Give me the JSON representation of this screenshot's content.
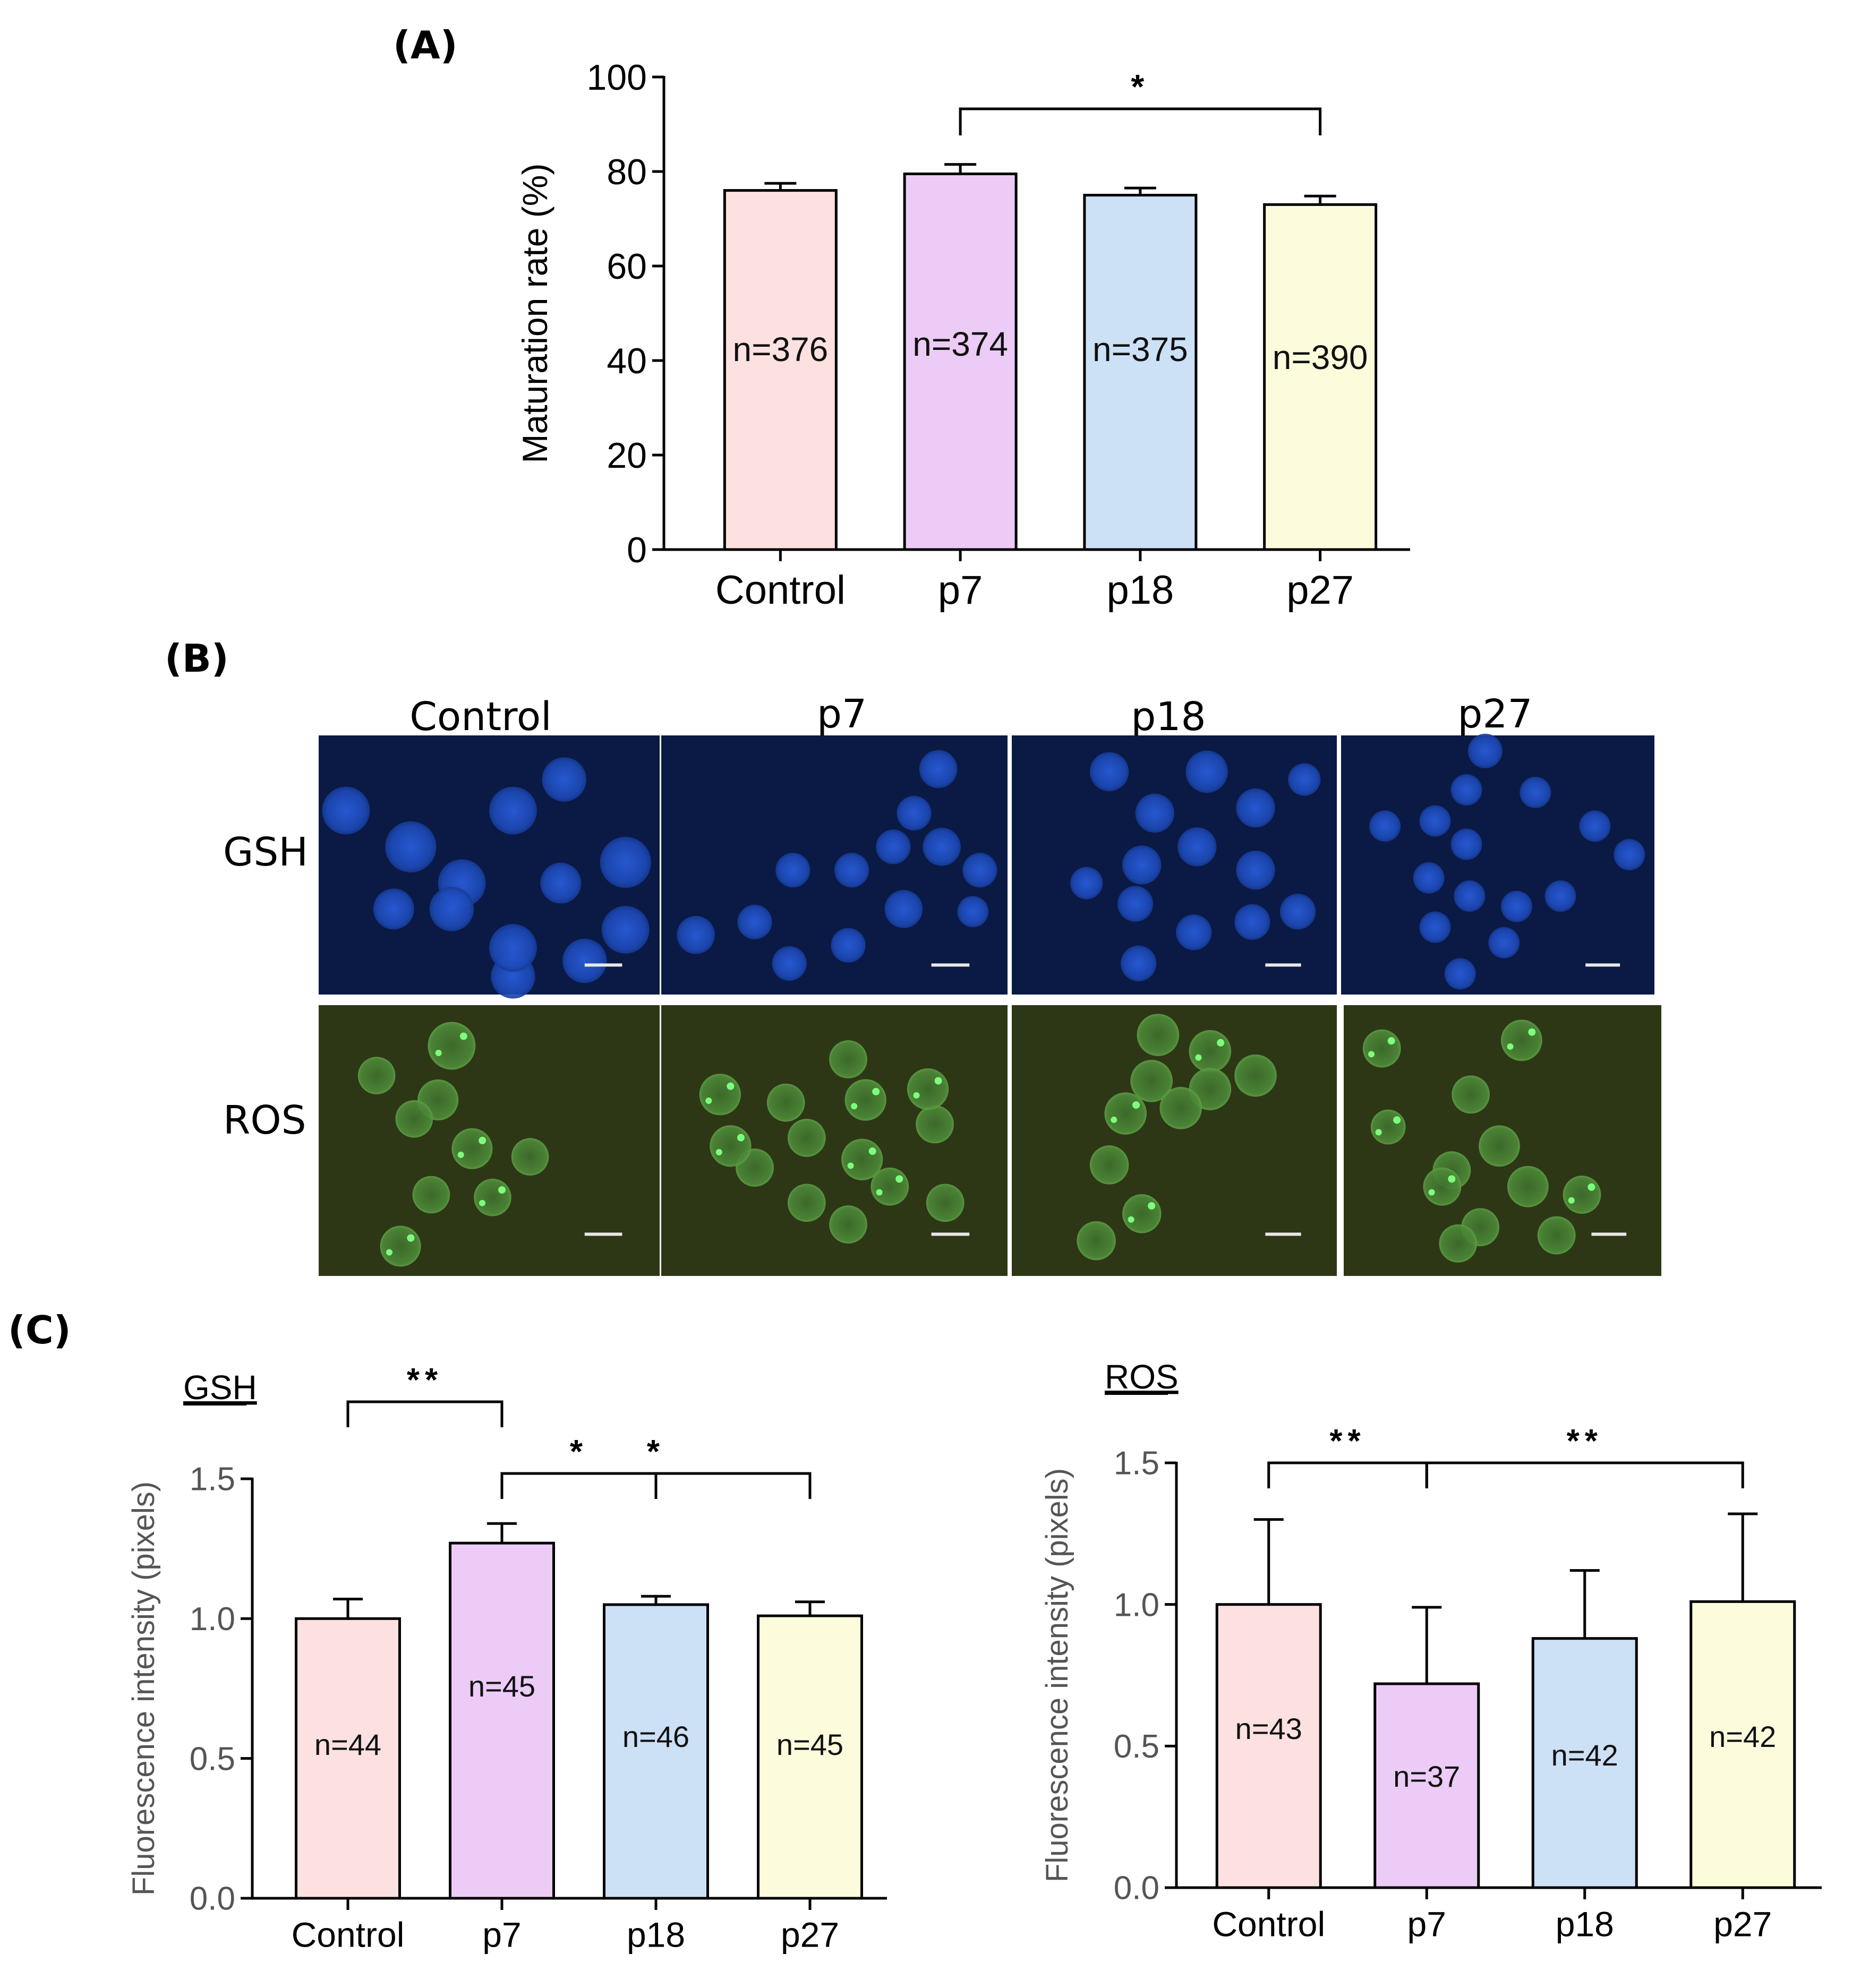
{
  "panels": {
    "a_label": "(A)",
    "b_label": "(B)",
    "c_label": "(C)"
  },
  "micrographs": {
    "columns": [
      "Control",
      "p7",
      "p18",
      "p27"
    ],
    "rows": [
      "GSH",
      "ROS"
    ],
    "gsh_bg": "#0a1a45",
    "gsh_cell": "#1f4fc6",
    "ros_bg": "#2d3716",
    "ros_cell": "#3f7a30",
    "ros_spot": "#7dff7d"
  },
  "chart_data": [
    {
      "type": "bar",
      "title": "",
      "ylabel": "Maturation rate (%)",
      "xlabel": "",
      "categories": [
        "Control",
        "p7",
        "p18",
        "p27"
      ],
      "values": [
        76,
        79.5,
        75,
        73
      ],
      "errors": [
        1.5,
        2,
        1.5,
        1.8
      ],
      "bar_labels": [
        "n=376",
        "n=374",
        "n=375",
        "n=390"
      ],
      "colors": [
        "#fde0e0",
        "#eccbf6",
        "#cce0f6",
        "#fcfcdc"
      ],
      "ylim": [
        0,
        100
      ],
      "yticks": [
        "0",
        "20",
        "40",
        "60",
        "80",
        "100"
      ],
      "significance": [
        {
          "from": 1,
          "to": 3,
          "label": "*"
        }
      ]
    },
    {
      "type": "bar",
      "title": "GSH",
      "ylabel": "Fluorescence intensity (pixels)",
      "xlabel": "",
      "categories": [
        "Control",
        "p7",
        "p18",
        "p27"
      ],
      "values": [
        1.0,
        1.27,
        1.05,
        1.01
      ],
      "errors": [
        0.07,
        0.07,
        0.03,
        0.05
      ],
      "bar_labels": [
        "n=44",
        "n=45",
        "n=46",
        "n=45"
      ],
      "colors": [
        "#fde0e0",
        "#eccbf6",
        "#cce0f6",
        "#fcfcdc"
      ],
      "ylim": [
        0,
        1.5
      ],
      "yticks": [
        "0.0",
        "0.5",
        "1.0",
        "1.5"
      ],
      "significance": [
        {
          "from": 0,
          "to": 1,
          "label": "**"
        },
        {
          "from": 1,
          "to": 2,
          "label": "*"
        },
        {
          "from": 1,
          "to": 3,
          "label": "*"
        }
      ]
    },
    {
      "type": "bar",
      "title": "ROS",
      "ylabel": "Fluorescence intensity (pixels)",
      "xlabel": "",
      "categories": [
        "Control",
        "p7",
        "p18",
        "p27"
      ],
      "values": [
        1.0,
        0.72,
        0.88,
        1.01
      ],
      "errors": [
        0.3,
        0.27,
        0.24,
        0.31
      ],
      "bar_labels": [
        "n=43",
        "n=37",
        "n=42",
        "n=42"
      ],
      "colors": [
        "#fde0e0",
        "#eccbf6",
        "#cce0f6",
        "#fcfcdc"
      ],
      "ylim": [
        0,
        1.5
      ],
      "yticks": [
        "0.0",
        "0.5",
        "1.0",
        "1.5"
      ],
      "significance": [
        {
          "from": 0,
          "to": 1,
          "label": "**"
        },
        {
          "from": 1,
          "to": 3,
          "label": "**"
        }
      ]
    }
  ]
}
